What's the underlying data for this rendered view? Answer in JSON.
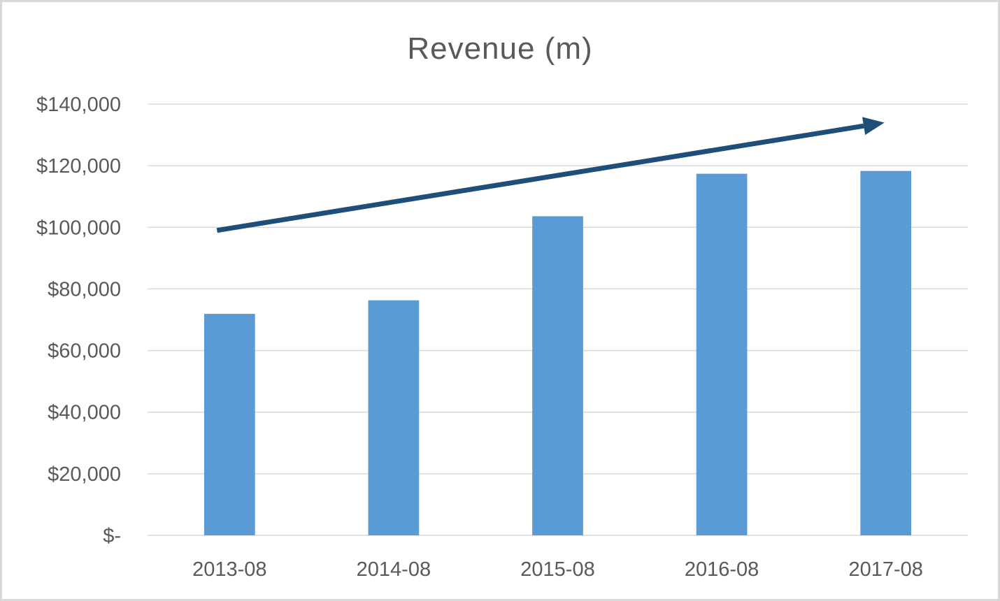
{
  "chart_data": {
    "type": "bar",
    "title": "Revenue (m)",
    "xlabel": "",
    "ylabel": "",
    "categories": [
      "2013-08",
      "2014-08",
      "2015-08",
      "2016-08",
      "2017-08"
    ],
    "values": [
      71900,
      76300,
      103600,
      117400,
      118300
    ],
    "ylim": [
      0,
      140000
    ],
    "y_ticks": [
      0,
      20000,
      40000,
      60000,
      80000,
      100000,
      120000,
      140000
    ],
    "y_tick_labels": [
      "$-",
      "$20,000",
      "$40,000",
      "$60,000",
      "$80,000",
      "$100,000",
      "$120,000",
      "$140,000"
    ],
    "grid": true,
    "legend": "none",
    "annotations": [
      {
        "type": "trend-arrow",
        "from": {
          "x": "2013-08",
          "y": 99000
        },
        "to": {
          "x": "2017-08",
          "y": 134000
        }
      }
    ],
    "colors": {
      "bar": "#5b9bd5",
      "arrow": "#1f4e79",
      "grid": "#d9d9d9",
      "text": "#595959"
    }
  }
}
